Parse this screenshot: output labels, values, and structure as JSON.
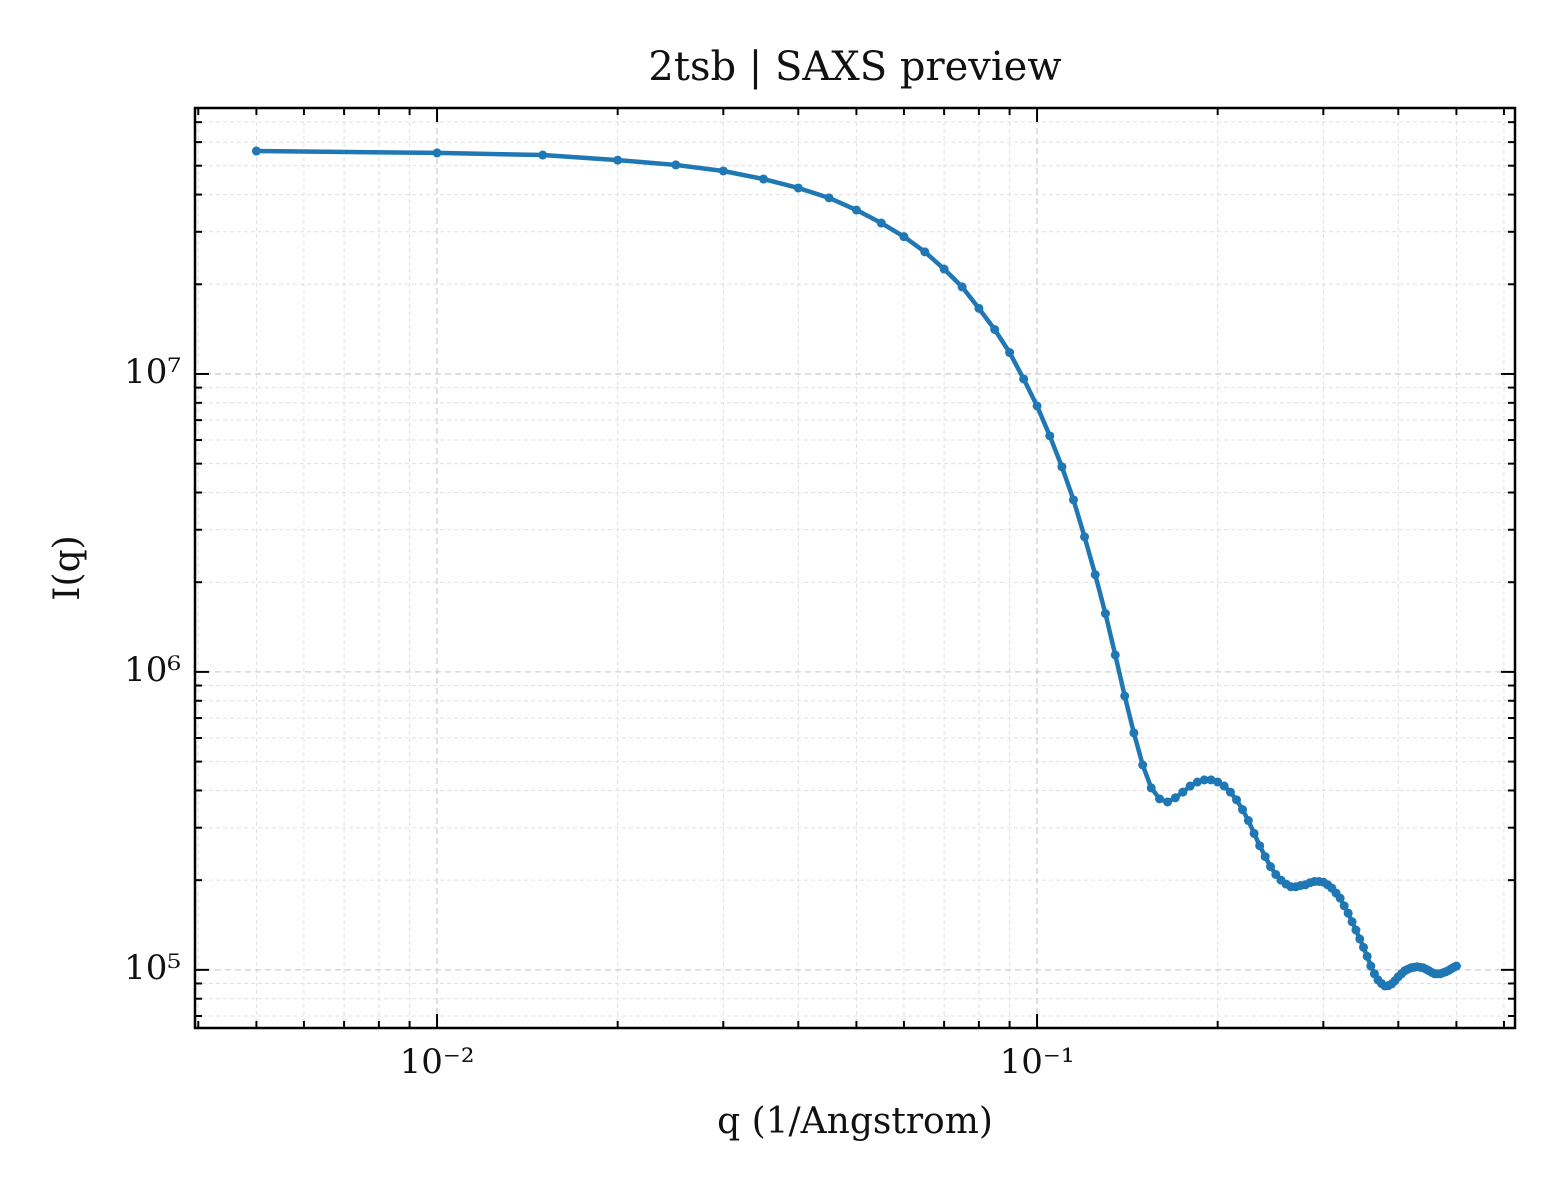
{
  "chart_data": {
    "type": "line",
    "title": "2tsb | SAXS preview",
    "xlabel": "q (1/Angstrom)",
    "ylabel": "I(q)",
    "xscale": "log",
    "yscale": "log",
    "grid": true,
    "color": "#1f77b4",
    "xlim": [
      0.00395,
      0.626
    ],
    "ylim": [
      63800,
      78100000
    ],
    "xticks": [
      {
        "value": 0.01,
        "label": "10⁻²"
      },
      {
        "value": 0.1,
        "label": "10⁻¹"
      }
    ],
    "yticks": [
      {
        "value": 100000,
        "label": "10⁵"
      },
      {
        "value": 1000000,
        "label": "10⁶"
      },
      {
        "value": 10000000,
        "label": "10⁷"
      }
    ],
    "xticks_minor": [
      0.004,
      0.005,
      0.006,
      0.007,
      0.008,
      0.009,
      0.02,
      0.03,
      0.04,
      0.05,
      0.06,
      0.07,
      0.08,
      0.09,
      0.2,
      0.3,
      0.4,
      0.5,
      0.6
    ],
    "yticks_minor": [
      70000,
      80000,
      90000,
      200000,
      300000,
      400000,
      500000,
      600000,
      700000,
      800000,
      900000,
      2000000,
      3000000,
      4000000,
      5000000,
      6000000,
      7000000,
      8000000,
      9000000,
      20000000,
      30000000,
      40000000,
      50000000,
      60000000,
      70000000
    ],
    "x": [
      0.005,
      0.01,
      0.015,
      0.02,
      0.025,
      0.03,
      0.035,
      0.04,
      0.045,
      0.05,
      0.055,
      0.06,
      0.065,
      0.07,
      0.075,
      0.08,
      0.085,
      0.09,
      0.095,
      0.1,
      0.105,
      0.11,
      0.115,
      0.12,
      0.125,
      0.13,
      0.135,
      0.14,
      0.145,
      0.15,
      0.155,
      0.16,
      0.165,
      0.17,
      0.175,
      0.18,
      0.185,
      0.19,
      0.195,
      0.2,
      0.205,
      0.21,
      0.215,
      0.22,
      0.225,
      0.23,
      0.235,
      0.24,
      0.245,
      0.25,
      0.255,
      0.26,
      0.265,
      0.27,
      0.275,
      0.28,
      0.285,
      0.29,
      0.295,
      0.3,
      0.305,
      0.31,
      0.315,
      0.32,
      0.325,
      0.33,
      0.335,
      0.34,
      0.345,
      0.35,
      0.355,
      0.36,
      0.365,
      0.37,
      0.375,
      0.38,
      0.385,
      0.39,
      0.395,
      0.4,
      0.405,
      0.41,
      0.415,
      0.42,
      0.425,
      0.43,
      0.435,
      0.44,
      0.445,
      0.45,
      0.455,
      0.46,
      0.465,
      0.47,
      0.475,
      0.48,
      0.485,
      0.49,
      0.495,
      0.5
    ],
    "values": [
      56000000,
      55200000,
      54300000,
      52200000,
      50300000,
      48000000,
      45100000,
      42100000,
      39000000,
      35500000,
      32100000,
      28900000,
      25700000,
      22500000,
      19600000,
      16600000,
      14100000,
      11800000,
      9620000,
      7810000,
      6200000,
      4880000,
      3780000,
      2840000,
      2120000,
      1570000,
      1140000,
      830000,
      624000,
      487000,
      408000,
      375000,
      366000,
      378000,
      395000,
      414000,
      427000,
      434000,
      434000,
      427000,
      414000,
      395000,
      372000,
      345000,
      317000,
      287000,
      261000,
      240000,
      222000,
      209000,
      200000,
      194000,
      190000,
      190000,
      192000,
      193000,
      196000,
      198000,
      198000,
      197000,
      193000,
      188000,
      181000,
      174000,
      164000,
      155000,
      145000,
      136000,
      127000,
      119000,
      111000,
      103000,
      97000,
      92500,
      90000,
      88300,
      88500,
      89700,
      92000,
      94800,
      97000,
      99300,
      100500,
      101600,
      102000,
      102400,
      102000,
      101600,
      100500,
      99300,
      98000,
      97000,
      97000,
      97000,
      97800,
      98500,
      99500,
      100800,
      102000,
      103000
    ]
  }
}
